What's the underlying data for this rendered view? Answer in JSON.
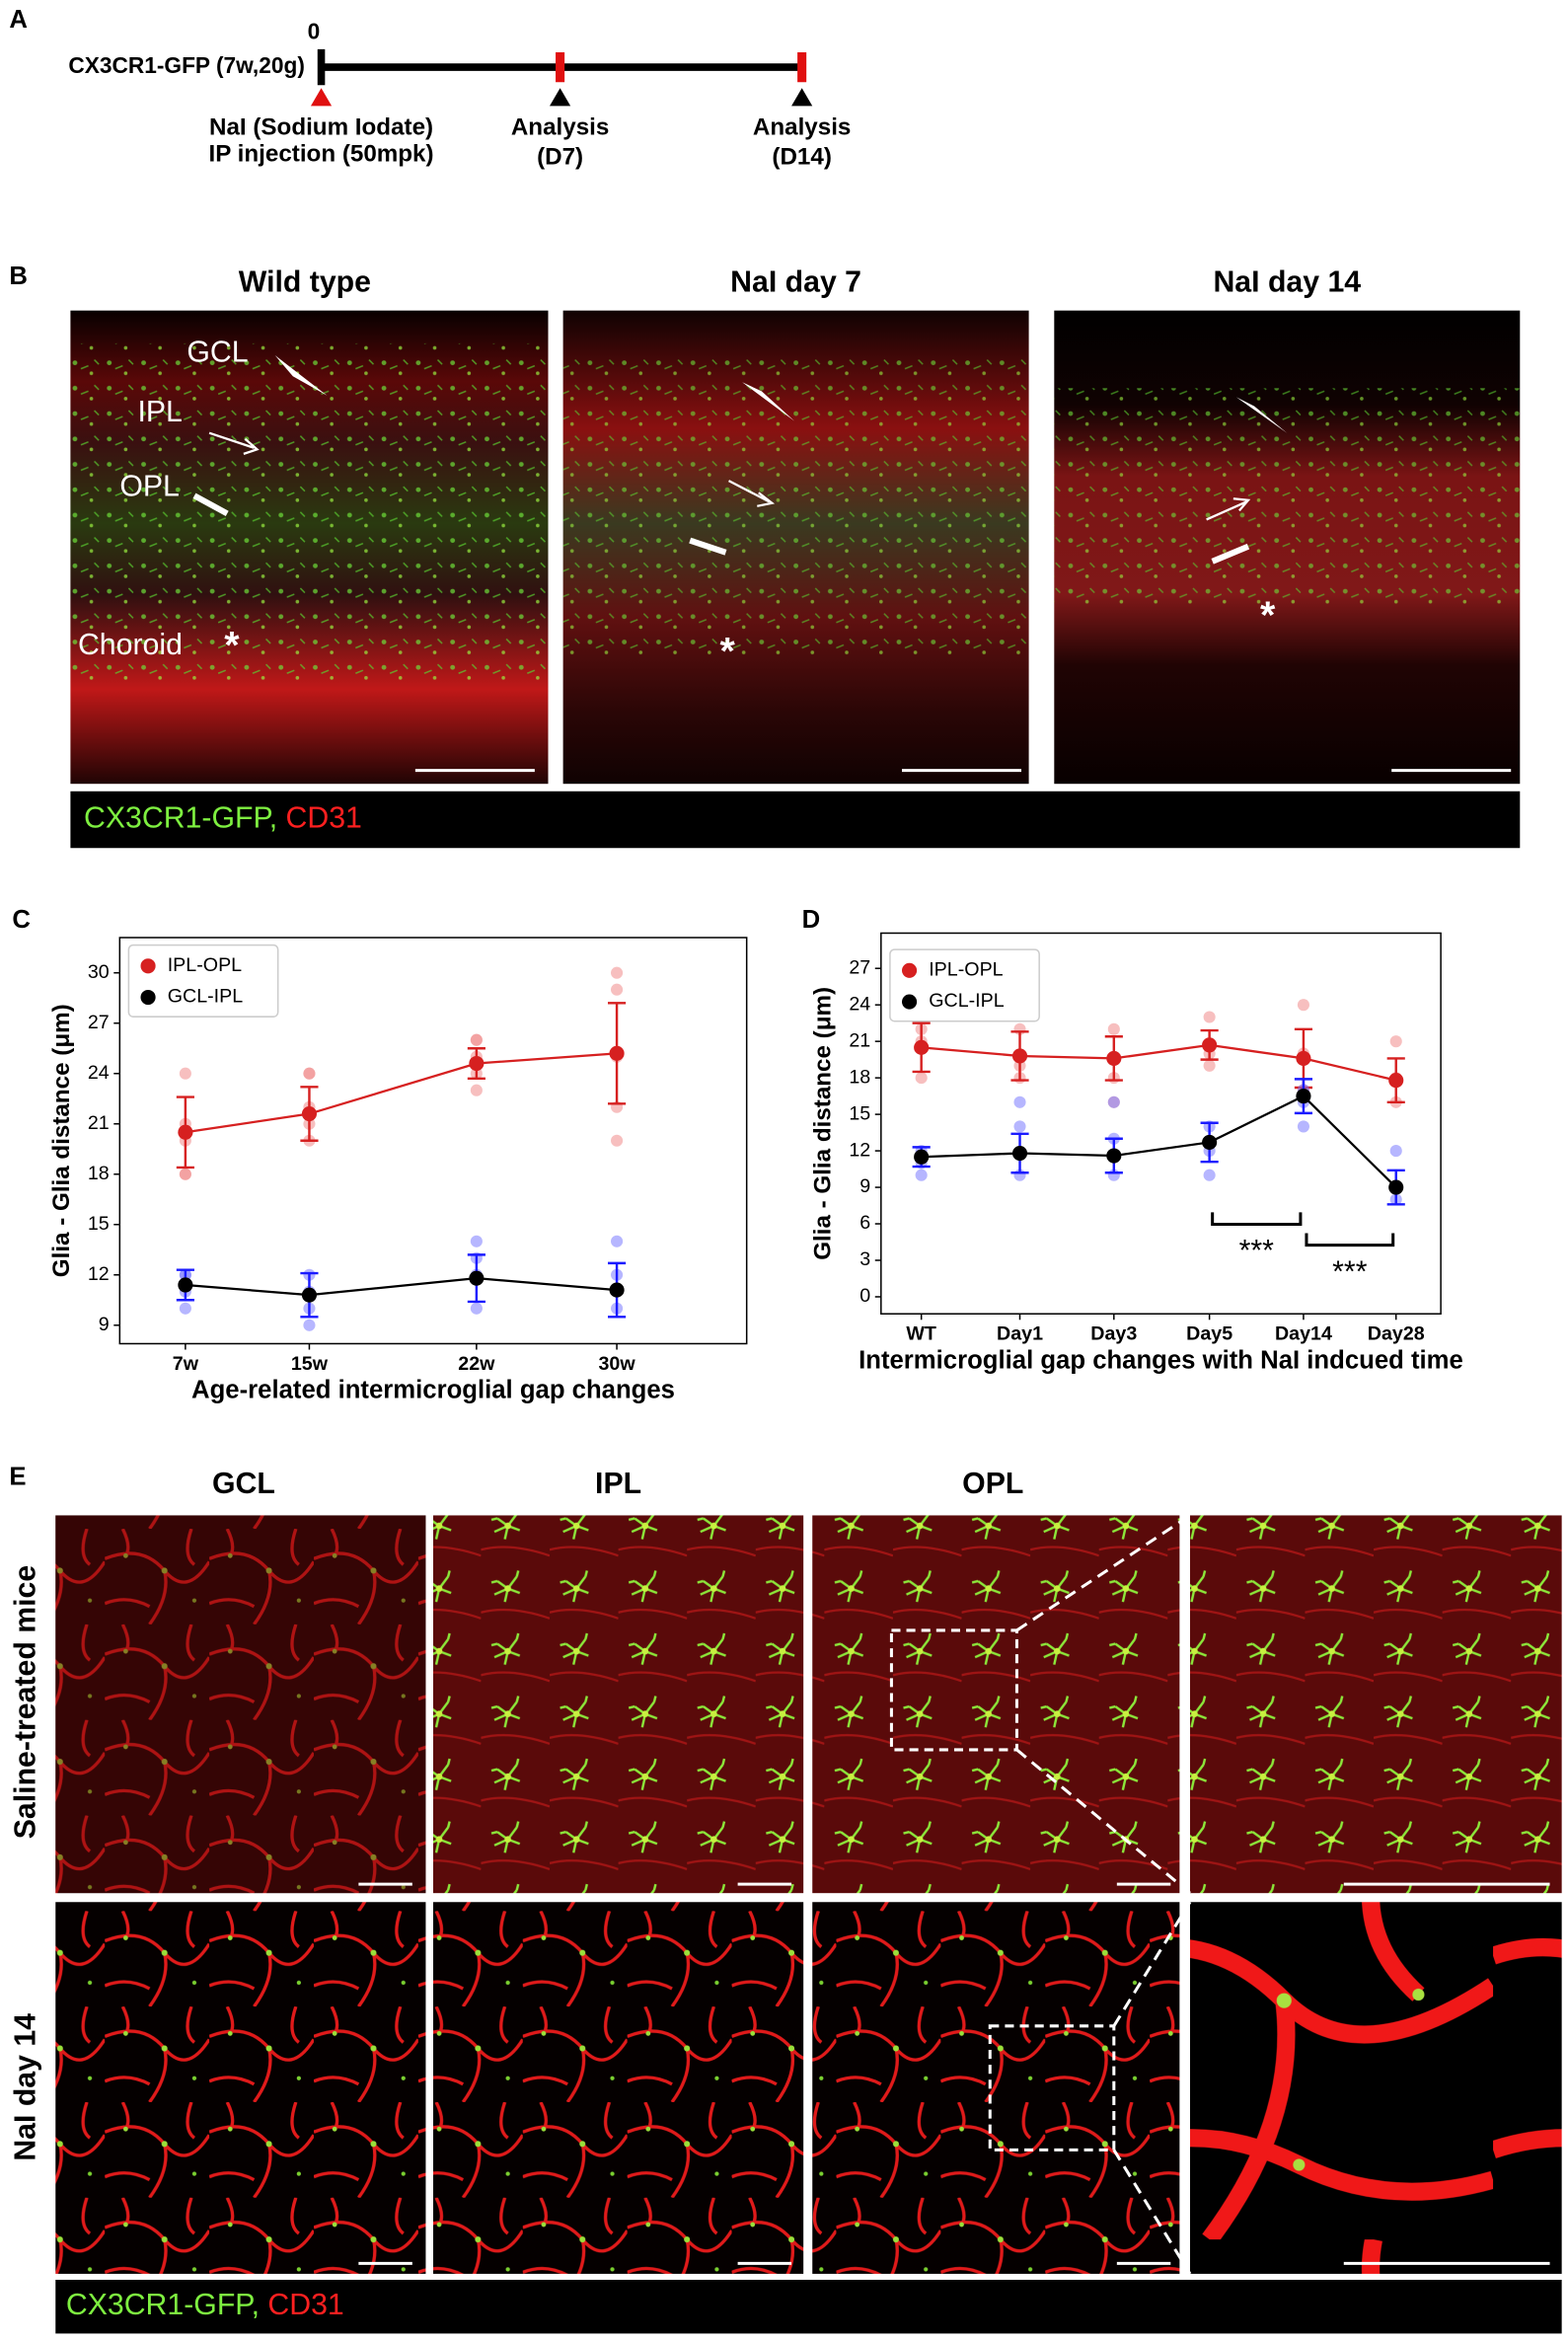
{
  "panel_a": {
    "label": "A",
    "time_zero": "0",
    "mouse": "CX3CR1-GFP (7w,20g)",
    "events": [
      {
        "lines": [
          "NaI (Sodium Iodate)",
          "IP injection (50mpk)"
        ]
      },
      {
        "lines": [
          "Analysis",
          "(D7)"
        ]
      },
      {
        "lines": [
          "Analysis",
          "(D14)"
        ]
      }
    ]
  },
  "panel_b": {
    "label": "B",
    "columns": [
      "Wild type",
      "NaI day 7",
      "NaI day 14"
    ],
    "layer_labels": [
      "GCL",
      "IPL",
      "OPL",
      "Choroid"
    ],
    "asterisks": [
      "*",
      "*",
      "*"
    ],
    "legend": [
      "CX3CR1-GFP,",
      "CD31"
    ]
  },
  "chart_data": [
    {
      "type": "line",
      "panel_label": "C",
      "xlabel": "Age-related intermicroglial gap changes",
      "ylabel": "Glia - Glia distance (μm)",
      "categories": [
        "7w",
        "15w",
        "22w",
        "30w"
      ],
      "ylim": [
        7.9,
        32.1
      ],
      "yticks": [
        9,
        12,
        15,
        18,
        21,
        24,
        27,
        30
      ],
      "legend": "upper left",
      "series": [
        {
          "name": "IPL-OPL",
          "color": "#d62020",
          "error_color": "#d62020",
          "point_color": "#f08a8a",
          "values": [
            20.5,
            21.6,
            24.6,
            25.2
          ],
          "errors": [
            2.1,
            1.6,
            0.9,
            3.0
          ],
          "points": [
            [
              24,
              18,
              18,
              20,
              21
            ],
            [
              24,
              20,
              21,
              22,
              24
            ],
            [
              26,
              24,
              25,
              23,
              26
            ],
            [
              30,
              22,
              25,
              20,
              29
            ]
          ]
        },
        {
          "name": "GCL-IPL",
          "color": "#000000",
          "error_color": "#1a1aff",
          "point_color": "#7a7aff",
          "values": [
            11.4,
            10.8,
            11.8,
            11.1
          ],
          "errors": [
            0.9,
            1.3,
            1.4,
            1.6
          ],
          "points": [
            [
              12,
              10,
              11,
              12
            ],
            [
              12,
              10,
              11,
              9
            ],
            [
              14,
              12,
              10,
              13
            ],
            [
              14,
              10,
              11,
              12
            ]
          ]
        }
      ],
      "annotations": []
    },
    {
      "type": "line",
      "panel_label": "D",
      "xlabel": "Intermicroglial gap changes with NaI indcued time",
      "ylabel": "Glia - Glia distance (μm)",
      "categories": [
        "WT",
        "Day1",
        "Day3",
        "Day5",
        "Day14",
        "Day28"
      ],
      "ylim": [
        -1.4,
        29.9
      ],
      "yticks": [
        0,
        3,
        6,
        9,
        12,
        15,
        18,
        21,
        24,
        27
      ],
      "legend": "upper left",
      "series": [
        {
          "name": "IPL-OPL",
          "color": "#d62020",
          "error_color": "#d62020",
          "point_color": "#f08a8a",
          "values": [
            20.5,
            19.8,
            19.6,
            20.7,
            19.6,
            17.8
          ],
          "errors": [
            2.0,
            2.0,
            1.8,
            1.2,
            2.4,
            1.8
          ],
          "points": [
            [
              18,
              22,
              21
            ],
            [
              22,
              19,
              18
            ],
            [
              22,
              18,
              16
            ],
            [
              23,
              20,
              19
            ],
            [
              24,
              20,
              17
            ],
            [
              21,
              18,
              16
            ]
          ]
        },
        {
          "name": "GCL-IPL",
          "color": "#000000",
          "error_color": "#1a1aff",
          "point_color": "#7a7aff",
          "values": [
            11.5,
            11.8,
            11.6,
            12.7,
            16.5,
            9.0
          ],
          "errors": [
            0.8,
            1.6,
            1.4,
            1.6,
            1.4,
            1.4
          ],
          "points": [
            [
              10,
              12,
              11
            ],
            [
              14,
              10,
              16
            ],
            [
              10,
              13,
              16
            ],
            [
              10,
              14,
              12
            ],
            [
              14,
              17,
              16
            ],
            [
              12,
              8,
              9
            ]
          ]
        }
      ],
      "annotations": [
        "***",
        "***"
      ]
    }
  ],
  "panel_e": {
    "label": "E",
    "columns": [
      "GCL",
      "IPL",
      "OPL"
    ],
    "rows": [
      "Saline-treated mice",
      "NaI day 14"
    ],
    "legend": [
      "CX3CR1-GFP,",
      "CD31"
    ]
  }
}
